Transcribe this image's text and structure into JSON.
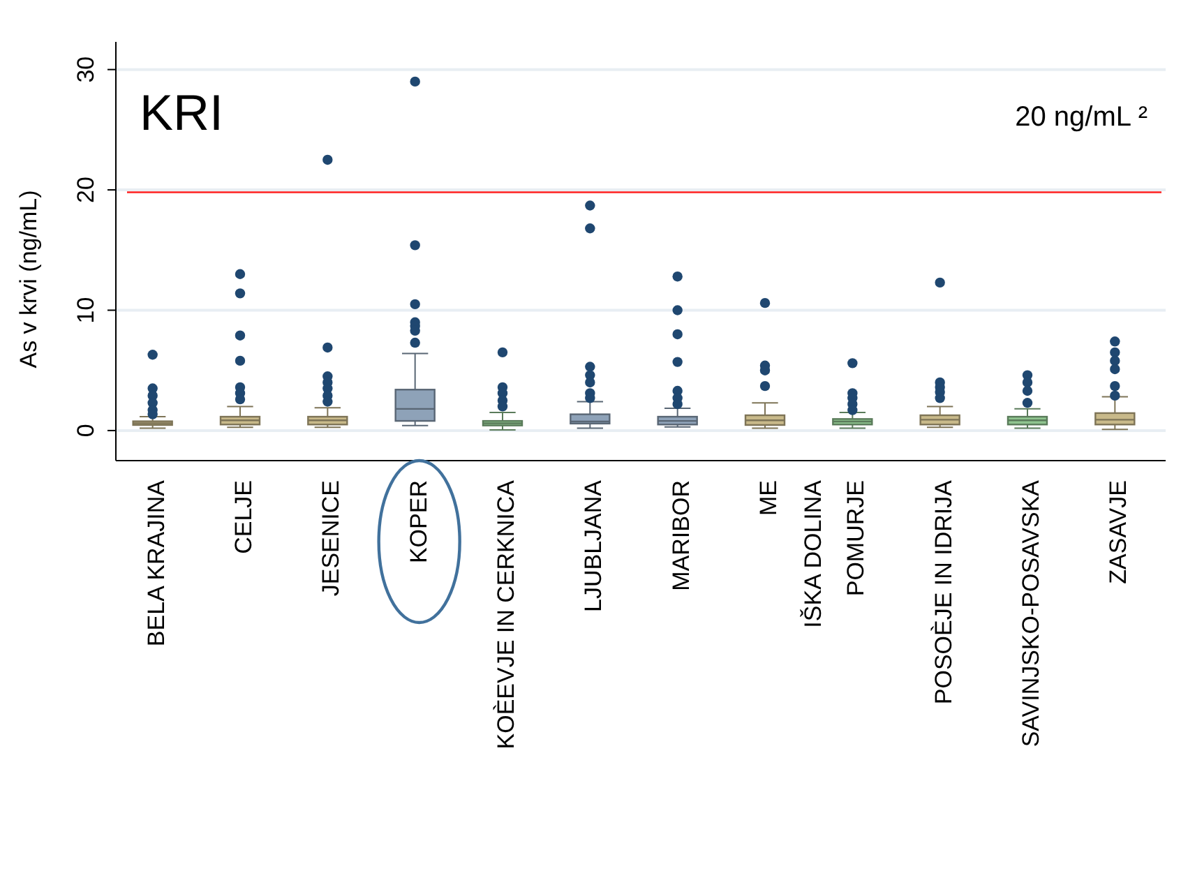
{
  "chart_data": {
    "type": "box",
    "title": "KRI",
    "ylabel": "As v krvi (ng/mL)",
    "annotations": [
      "20 ng/mL ²"
    ],
    "categories": [
      "BELA KRAJINA",
      "CELJE",
      "JESENICE",
      "KOPER",
      "KOÈEVJE IN CERKNICA",
      "LJUBLJANA",
      "MARIBOR",
      "ME\nIŠKA DOLINA",
      "POMURJE",
      "POSOÈJE IN IDRIJA",
      "SAVINJSKO-POSAVSKA",
      "ZASAVJE"
    ],
    "colors": [
      "#c8b98a",
      "#c8b98a",
      "#c8b98a",
      "#8ea2b8",
      "#8fc48f",
      "#8ea2b8",
      "#8ea2b8",
      "#c8b98a",
      "#8fc48f",
      "#c8b98a",
      "#8fc48f",
      "#c8b98a"
    ],
    "boxes": [
      {
        "low": 0.2,
        "q1": 0.46,
        "median": 0.6,
        "q3": 0.77,
        "high": 1.15,
        "outliers": [
          6.3,
          3.5,
          2.9,
          2.3,
          1.7,
          1.35
        ]
      },
      {
        "low": 0.27,
        "q1": 0.5,
        "median": 0.85,
        "q3": 1.15,
        "high": 2.0,
        "outliers": [
          13.0,
          11.4,
          7.9,
          5.8,
          3.6,
          3.1,
          2.6
        ]
      },
      {
        "low": 0.27,
        "q1": 0.5,
        "median": 0.85,
        "q3": 1.15,
        "high": 1.9,
        "outliers": [
          22.5,
          6.9,
          4.5,
          4.0,
          3.5,
          2.9,
          2.4
        ]
      },
      {
        "low": 0.42,
        "q1": 0.8,
        "median": 1.8,
        "q3": 3.4,
        "high": 6.4,
        "outliers": [
          29.0,
          15.4,
          10.5,
          9.0,
          8.7,
          8.3,
          7.3
        ]
      },
      {
        "low": 0.05,
        "q1": 0.42,
        "median": 0.6,
        "q3": 0.8,
        "high": 1.5,
        "outliers": [
          6.5,
          3.6,
          3.1,
          2.5,
          2.0
        ]
      },
      {
        "low": 0.2,
        "q1": 0.58,
        "median": 0.75,
        "q3": 1.35,
        "high": 2.4,
        "outliers": [
          18.7,
          16.8,
          5.3,
          4.6,
          4.0,
          3.1,
          2.7
        ]
      },
      {
        "low": 0.3,
        "q1": 0.5,
        "median": 0.8,
        "q3": 1.15,
        "high": 1.85,
        "outliers": [
          12.8,
          10.0,
          8.0,
          5.7,
          3.3,
          2.7,
          2.2
        ]
      },
      {
        "low": 0.2,
        "q1": 0.46,
        "median": 0.85,
        "q3": 1.27,
        "high": 2.3,
        "outliers": [
          10.6,
          5.4,
          5.0,
          3.7
        ]
      },
      {
        "low": 0.2,
        "q1": 0.5,
        "median": 0.75,
        "q3": 0.96,
        "high": 1.5,
        "outliers": [
          5.6,
          3.1,
          2.7,
          2.2,
          1.7
        ]
      },
      {
        "low": 0.27,
        "q1": 0.5,
        "median": 0.9,
        "q3": 1.27,
        "high": 2.0,
        "outliers": [
          12.3,
          4.0,
          3.6,
          3.2,
          2.7
        ]
      },
      {
        "low": 0.2,
        "q1": 0.5,
        "median": 0.85,
        "q3": 1.15,
        "high": 1.8,
        "outliers": [
          4.6,
          4.0,
          3.3,
          2.3
        ]
      },
      {
        "low": 0.1,
        "q1": 0.5,
        "median": 0.9,
        "q3": 1.45,
        "high": 2.8,
        "outliers": [
          7.4,
          6.5,
          5.8,
          5.1,
          3.7,
          2.9
        ]
      }
    ],
    "ylim": [
      -2.5,
      32.3
    ],
    "yticks": [
      0,
      10,
      20,
      30
    ],
    "grid": "y",
    "ref_lines": [
      {
        "axis": "y",
        "value": 19.8,
        "color": "#ff2020"
      }
    ]
  }
}
